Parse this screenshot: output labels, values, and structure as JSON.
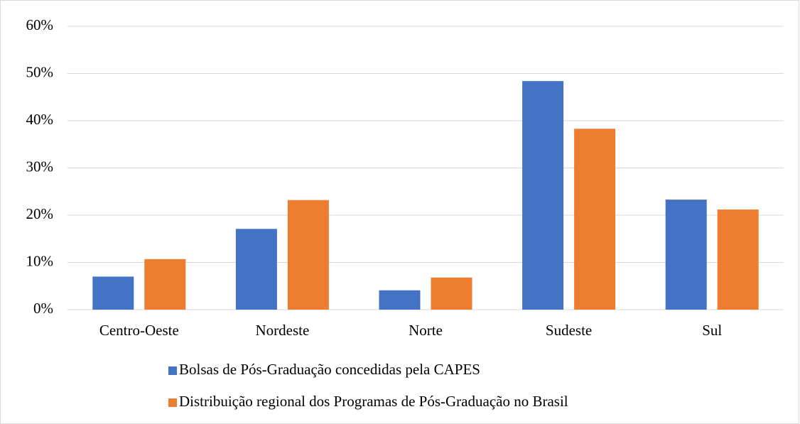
{
  "chart_data": {
    "type": "bar",
    "categories": [
      "Centro-Oeste",
      "Nordeste",
      "Norte",
      "Sudeste",
      "Sul"
    ],
    "series": [
      {
        "name": "Bolsas de Pós-Graduação concedidas pela CAPES",
        "color": "#4472c4",
        "values": [
          7.0,
          17.1,
          4.1,
          48.4,
          23.3
        ]
      },
      {
        "name": "Distribuição regional dos Programas de Pós-Graduação no Brasil",
        "color": "#ed7d31",
        "values": [
          10.7,
          23.2,
          6.8,
          38.3,
          21.2
        ]
      }
    ],
    "ylim": [
      0,
      60
    ],
    "yticks": [
      {
        "value": 0,
        "label": "0%"
      },
      {
        "value": 10,
        "label": "10%"
      },
      {
        "value": 20,
        "label": "20%"
      },
      {
        "value": 30,
        "label": "30%"
      },
      {
        "value": 40,
        "label": "40%"
      },
      {
        "value": 50,
        "label": "50%"
      },
      {
        "value": 60,
        "label": "60%"
      }
    ],
    "grid": true,
    "legend": "bottom"
  }
}
